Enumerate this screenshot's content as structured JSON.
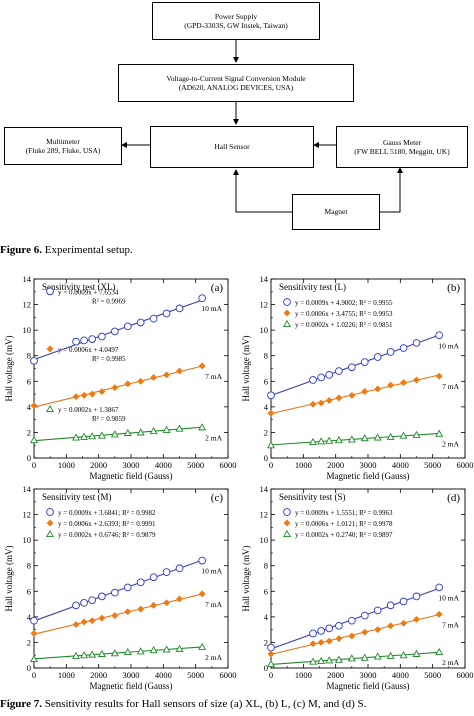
{
  "figure6": {
    "boxes": {
      "power_supply": [
        "Power Supply",
        "(GPD-3303S, GW Instek, Taiwan)"
      ],
      "converter": [
        "Voltage-to-Current Signal Conversion Module",
        "(AD620, ANALOG DEVICES, USA)"
      ],
      "multimeter": [
        "Multimeter",
        "(Fluke 289, Fluke, USA)"
      ],
      "hall_sensor": [
        "Hall Sensor"
      ],
      "gauss_meter": [
        "Gauss Meter",
        "(FW BELL 5180, Meggitt, UK)"
      ],
      "magnet": [
        "Magnet"
      ]
    },
    "caption_label": "Figure 6.",
    "caption_text": " Experimental setup."
  },
  "figure7": {
    "caption_label": "Figure 7.",
    "caption_text": " Sensitivity results for Hall sensors of size (a) XL, (b) L, (c) M, and (d) S."
  },
  "chart_data": [
    {
      "type": "scatter",
      "title": "Sensitivity test (XL)",
      "panel": "(a)",
      "xlabel": "Magnetic field (Gauss)",
      "ylabel": "Hall voltage (mV)",
      "xlim": [
        0,
        6000
      ],
      "ylim": [
        0,
        14
      ],
      "xticks": [
        0,
        1000,
        2000,
        3000,
        4000,
        5000,
        6000
      ],
      "yticks": [
        0,
        2,
        4,
        6,
        8,
        10,
        12,
        14
      ],
      "series": [
        {
          "name": "10 mA",
          "marker": "circle",
          "color": "#2a3bd0",
          "line_color": "#3a3fb0",
          "x": [
            0,
            1300,
            1550,
            1800,
            2100,
            2500,
            2900,
            3300,
            3700,
            4100,
            4500,
            5200
          ],
          "y": [
            7.6,
            9.1,
            9.2,
            9.3,
            9.5,
            9.9,
            10.3,
            10.6,
            10.9,
            11.3,
            11.7,
            12.5
          ],
          "equation": "y = 0.0009x + 7.6534",
          "r2": "R² = 0.9969"
        },
        {
          "name": "7 mA",
          "marker": "diamond",
          "color": "#f07a10",
          "line_color": "#e8741a",
          "x": [
            0,
            1300,
            1550,
            1800,
            2100,
            2500,
            2900,
            3300,
            3700,
            4100,
            4500,
            5200
          ],
          "y": [
            4.1,
            4.8,
            4.9,
            5.0,
            5.2,
            5.5,
            5.8,
            6.0,
            6.3,
            6.5,
            6.8,
            7.2
          ],
          "equation": "y = 0.0006x + 4.0497",
          "r2": "R² = 0.9985"
        },
        {
          "name": "2 mA",
          "marker": "triangle",
          "color": "#1f8a2a",
          "line_color": "#1f8a2a",
          "x": [
            0,
            1300,
            1550,
            1800,
            2100,
            2500,
            2900,
            3300,
            3700,
            4100,
            4500,
            5200
          ],
          "y": [
            1.4,
            1.6,
            1.65,
            1.7,
            1.75,
            1.85,
            1.95,
            2.0,
            2.1,
            2.2,
            2.3,
            2.4
          ],
          "equation": "y = 0.0002x + 1.3867",
          "r2": "R² = 0.9859"
        }
      ]
    },
    {
      "type": "scatter",
      "title": "Sensitivity test (L)",
      "panel": "(b)",
      "xlabel": "Magnetic field (Gauss)",
      "ylabel": "Hall voltage (mV)",
      "xlim": [
        0,
        6000
      ],
      "ylim": [
        0,
        14
      ],
      "xticks": [
        0,
        1000,
        2000,
        3000,
        4000,
        5000,
        6000
      ],
      "yticks": [
        0,
        2,
        4,
        6,
        8,
        10,
        12,
        14
      ],
      "series": [
        {
          "name": "10 mA",
          "marker": "circle",
          "color": "#2a3bd0",
          "line_color": "#3a3fb0",
          "x": [
            0,
            1300,
            1550,
            1800,
            2100,
            2500,
            2900,
            3300,
            3700,
            4100,
            4500,
            5200
          ],
          "y": [
            4.9,
            6.1,
            6.3,
            6.5,
            6.8,
            7.1,
            7.5,
            7.9,
            8.3,
            8.6,
            9.0,
            9.6
          ],
          "equation": "y = 0.0009x + 4.9002; R² = 0.9955",
          "r2": ""
        },
        {
          "name": "7 mA",
          "marker": "diamond",
          "color": "#f07a10",
          "line_color": "#e8741a",
          "x": [
            0,
            1300,
            1550,
            1800,
            2100,
            2500,
            2900,
            3300,
            3700,
            4100,
            4500,
            5200
          ],
          "y": [
            3.5,
            4.2,
            4.3,
            4.5,
            4.7,
            4.9,
            5.2,
            5.4,
            5.7,
            5.9,
            6.1,
            6.4
          ],
          "equation": "y = 0.0006x + 3.4755; R² = 0.9953",
          "r2": ""
        },
        {
          "name": "2 mA",
          "marker": "triangle",
          "color": "#1f8a2a",
          "line_color": "#1f8a2a",
          "x": [
            0,
            1300,
            1550,
            1800,
            2100,
            2500,
            2900,
            3300,
            3700,
            4100,
            4500,
            5200
          ],
          "y": [
            1.0,
            1.25,
            1.3,
            1.35,
            1.4,
            1.45,
            1.55,
            1.6,
            1.65,
            1.75,
            1.8,
            1.9
          ],
          "equation": "y = 0.0002x + 1.0226; R² = 0.9851",
          "r2": ""
        }
      ]
    },
    {
      "type": "scatter",
      "title": "Sensitivity test (M)",
      "panel": "(c)",
      "xlabel": "Magnetic field (Gauss)",
      "ylabel": "Hall voltage (mV)",
      "xlim": [
        0,
        6000
      ],
      "ylim": [
        0,
        14
      ],
      "xticks": [
        0,
        1000,
        2000,
        3000,
        4000,
        5000,
        6000
      ],
      "yticks": [
        0,
        2,
        4,
        6,
        8,
        10,
        12,
        14
      ],
      "series": [
        {
          "name": "10 mA",
          "marker": "circle",
          "color": "#2a3bd0",
          "line_color": "#3a3fb0",
          "x": [
            0,
            1300,
            1550,
            1800,
            2100,
            2500,
            2900,
            3300,
            3700,
            4100,
            4500,
            5200
          ],
          "y": [
            3.7,
            4.9,
            5.1,
            5.3,
            5.6,
            5.9,
            6.3,
            6.7,
            7.1,
            7.5,
            7.8,
            8.4
          ],
          "equation": "y = 0.0009x + 3.6841;  R² = 0.9982",
          "r2": ""
        },
        {
          "name": "7 mA",
          "marker": "diamond",
          "color": "#f07a10",
          "line_color": "#e8741a",
          "x": [
            0,
            1300,
            1550,
            1800,
            2100,
            2500,
            2900,
            3300,
            3700,
            4100,
            4500,
            5200
          ],
          "y": [
            2.7,
            3.4,
            3.6,
            3.7,
            3.9,
            4.1,
            4.4,
            4.6,
            4.9,
            5.1,
            5.4,
            5.8
          ],
          "equation": "y = 0.0006x + 2.6393;  R² = 0.9991",
          "r2": ""
        },
        {
          "name": "2 mA",
          "marker": "triangle",
          "color": "#1f8a2a",
          "line_color": "#1f8a2a",
          "x": [
            0,
            1300,
            1550,
            1800,
            2100,
            2500,
            2900,
            3300,
            3700,
            4100,
            4500,
            5200
          ],
          "y": [
            0.7,
            0.95,
            1.0,
            1.05,
            1.1,
            1.15,
            1.25,
            1.3,
            1.4,
            1.45,
            1.5,
            1.65
          ],
          "equation": "y = 0.0002x + 0.6746;  R² = 0.9879",
          "r2": ""
        }
      ]
    },
    {
      "type": "scatter",
      "title": "Sensitivity test (S)",
      "panel": "(d)",
      "xlabel": "Magnetic field (Gauss)",
      "ylabel": "Hall voltage (mV)",
      "xlim": [
        0,
        6000
      ],
      "ylim": [
        0,
        14
      ],
      "xticks": [
        0,
        1000,
        2000,
        3000,
        4000,
        5000,
        6000
      ],
      "yticks": [
        0,
        2,
        4,
        6,
        8,
        10,
        12,
        14
      ],
      "series": [
        {
          "name": "10 mA",
          "marker": "circle",
          "color": "#2a3bd0",
          "line_color": "#3a3fb0",
          "x": [
            0,
            1300,
            1550,
            1800,
            2100,
            2500,
            2900,
            3300,
            3700,
            4100,
            4500,
            5200
          ],
          "y": [
            1.6,
            2.7,
            2.9,
            3.1,
            3.3,
            3.7,
            4.1,
            4.5,
            4.9,
            5.2,
            5.6,
            6.3
          ],
          "equation": "y = 0.0009x + 1.5551;  R² = 0.9963",
          "r2": ""
        },
        {
          "name": "7 mA",
          "marker": "diamond",
          "color": "#f07a10",
          "line_color": "#e8741a",
          "x": [
            0,
            1300,
            1550,
            1800,
            2100,
            2500,
            2900,
            3300,
            3700,
            4100,
            4500,
            5200
          ],
          "y": [
            1.1,
            1.9,
            2.0,
            2.1,
            2.3,
            2.5,
            2.8,
            3.0,
            3.3,
            3.5,
            3.8,
            4.2
          ],
          "equation": "y = 0.0006x + 1.0121;  R² = 0.9978",
          "r2": ""
        },
        {
          "name": "2 mA",
          "marker": "triangle",
          "color": "#1f8a2a",
          "line_color": "#1f8a2a",
          "x": [
            0,
            1300,
            1550,
            1800,
            2100,
            2500,
            2900,
            3300,
            3700,
            4100,
            4500,
            5200
          ],
          "y": [
            0.3,
            0.5,
            0.55,
            0.6,
            0.65,
            0.75,
            0.8,
            0.9,
            0.95,
            1.0,
            1.1,
            1.25
          ],
          "equation": "y = 0.0002x + 0.2740;  R² = 0.9897",
          "r2": ""
        }
      ]
    }
  ]
}
